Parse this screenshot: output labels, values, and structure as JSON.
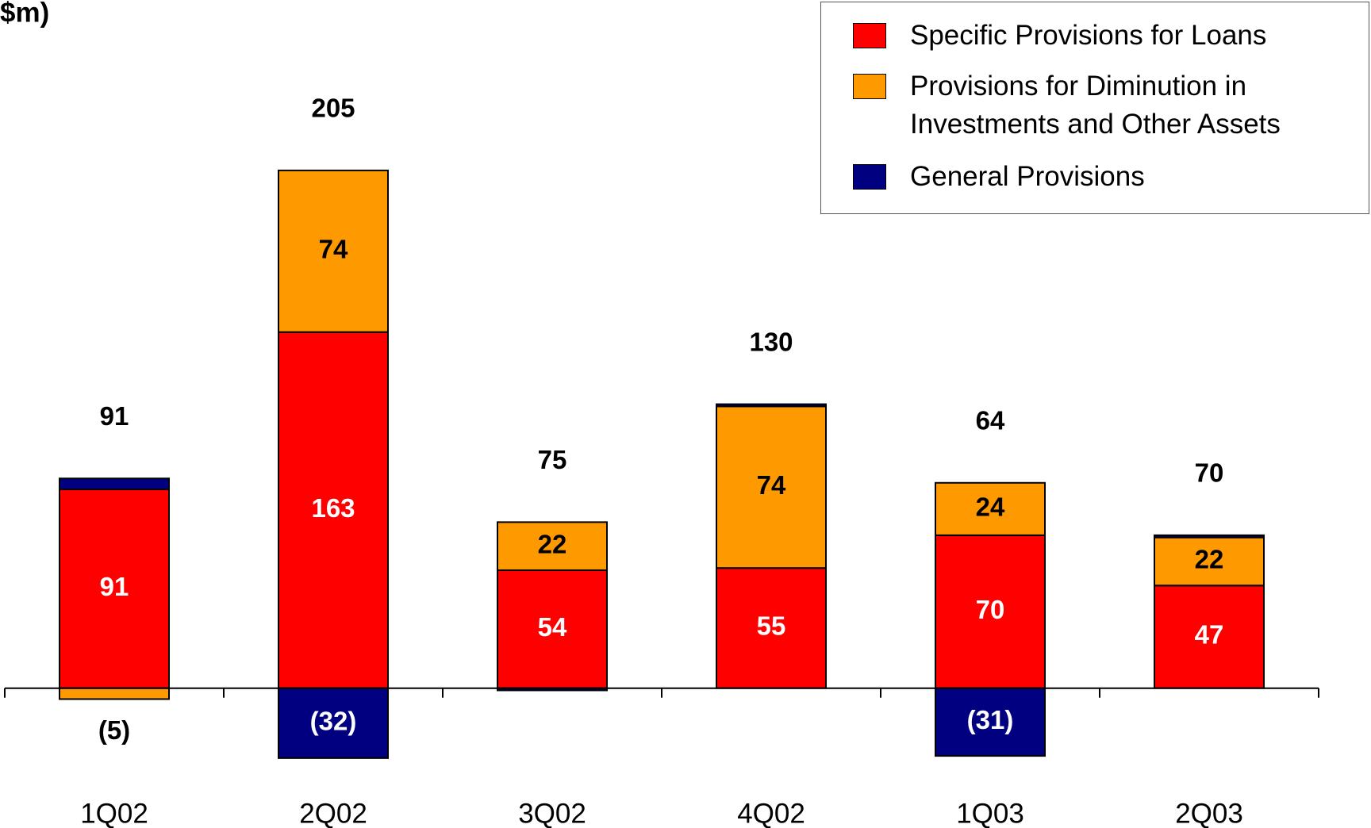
{
  "chart_data": {
    "type": "stacked-bar",
    "title": "$m)",
    "categories": [
      "1Q02",
      "2Q02",
      "3Q02",
      "4Q02",
      "1Q03",
      "2Q03"
    ],
    "series": [
      {
        "name": "Specific Provisions for Loans",
        "color": "#ff0000",
        "label_color": "#ffffff",
        "values": [
          91,
          163,
          54,
          55,
          70,
          47
        ]
      },
      {
        "name": "Provisions for Diminution in Investments and Other Assets",
        "color": "#ff9900",
        "label_color": "#000000",
        "values": [
          -5,
          74,
          22,
          74,
          24,
          22
        ],
        "value_labels": [
          "(5)",
          "74",
          "22",
          "74",
          "24",
          "22"
        ]
      },
      {
        "name": "General Provisions",
        "color": "#000080",
        "label_color": "#ffffff",
        "values": [
          5,
          -32,
          -1,
          1,
          -31,
          1
        ],
        "value_labels": [
          null,
          "(32)",
          null,
          null,
          "(31)",
          null
        ]
      }
    ],
    "totals": [
      91,
      205,
      75,
      130,
      64,
      70
    ],
    "ylim": [
      -64,
      315
    ],
    "legend": "top-right"
  }
}
